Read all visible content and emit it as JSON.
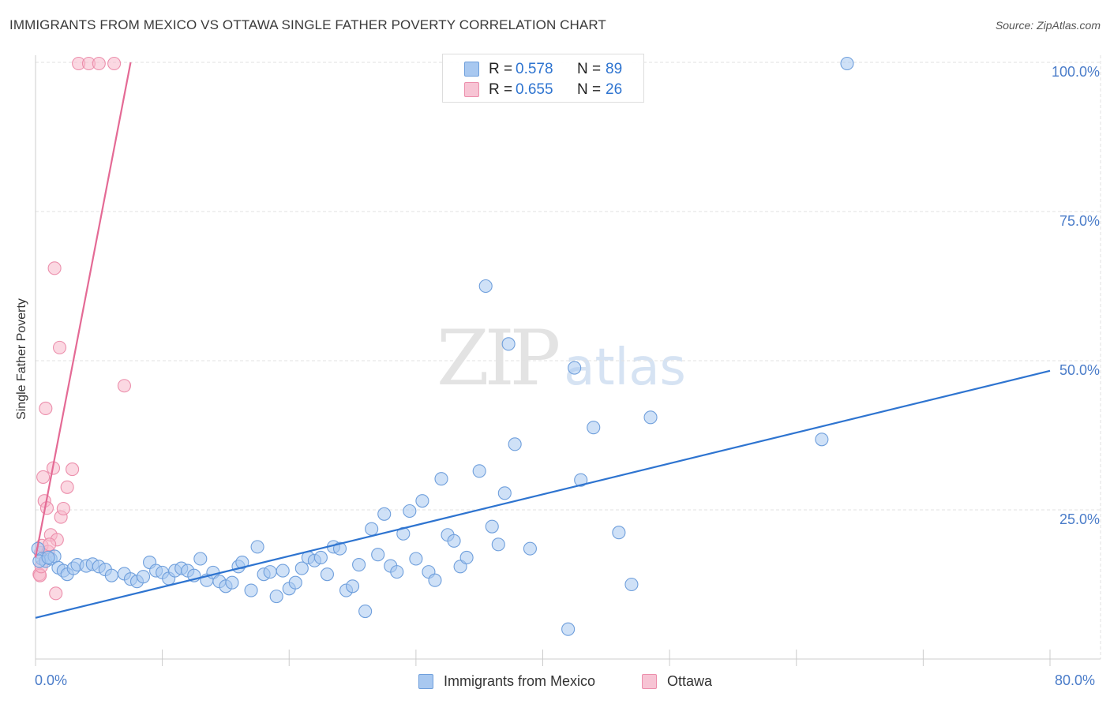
{
  "title": "IMMIGRANTS FROM MEXICO VS OTTAWA SINGLE FATHER POVERTY CORRELATION CHART",
  "source": "Source: ZipAtlas.com",
  "watermark": {
    "zip": "ZIP",
    "atlas": "atlas"
  },
  "colors": {
    "blue_fill": "#a8c8f0",
    "blue_stroke": "#6f9fdc",
    "blue_line": "#2e74d0",
    "pink_fill": "#f7b8cb",
    "pink_stroke": "#ec8fac",
    "pink_line": "#e46a95",
    "tick_label": "#4a7cc9",
    "grid": "#e2e2e2"
  },
  "legend": {
    "rows": [
      {
        "r_label": "R =",
        "r_value": "0.578",
        "n_label": "N =",
        "n_value": "89"
      },
      {
        "r_label": "R =",
        "r_value": "0.655",
        "n_label": "N =",
        "n_value": "26"
      }
    ]
  },
  "bottom_legend": {
    "items": [
      {
        "label": "Immigrants from Mexico"
      },
      {
        "label": "Ottawa"
      }
    ]
  },
  "chart_data": {
    "type": "scatter",
    "title": "IMMIGRANTS FROM MEXICO VS OTTAWA SINGLE FATHER POVERTY CORRELATION CHART",
    "xlabel": "",
    "ylabel": "Single Father Poverty",
    "xlim": [
      0,
      80
    ],
    "ylim": [
      0,
      100
    ],
    "x_tick_labels": [
      "0.0%",
      "80.0%"
    ],
    "y_ticks": [
      25,
      50,
      75,
      100
    ],
    "y_tick_labels": [
      "25.0%",
      "50.0%",
      "75.0%",
      "100.0%"
    ],
    "grid": true,
    "series": [
      {
        "name": "Immigrants from Mexico",
        "r": 0.578,
        "n": 89,
        "trend": {
          "x": [
            0,
            80
          ],
          "y": [
            6.9,
            48.3
          ]
        },
        "points": [
          [
            0.2,
            18.5
          ],
          [
            0.5,
            16.8
          ],
          [
            0.8,
            16.4
          ],
          [
            1.2,
            16.8
          ],
          [
            1.5,
            17.2
          ],
          [
            1.8,
            15.3
          ],
          [
            2.2,
            14.8
          ],
          [
            2.5,
            14.2
          ],
          [
            3.0,
            15.2
          ],
          [
            3.3,
            15.8
          ],
          [
            4.0,
            15.6
          ],
          [
            4.5,
            15.9
          ],
          [
            5.0,
            15.5
          ],
          [
            5.5,
            15.0
          ],
          [
            6.0,
            14.0
          ],
          [
            7.0,
            14.3
          ],
          [
            7.5,
            13.4
          ],
          [
            8.0,
            13.0
          ],
          [
            8.5,
            13.8
          ],
          [
            9.0,
            16.2
          ],
          [
            9.5,
            14.8
          ],
          [
            10.0,
            14.5
          ],
          [
            10.5,
            13.5
          ],
          [
            11.0,
            14.8
          ],
          [
            11.5,
            15.2
          ],
          [
            12.0,
            14.8
          ],
          [
            12.5,
            14.0
          ],
          [
            13.0,
            16.8
          ],
          [
            13.5,
            13.2
          ],
          [
            14.0,
            14.5
          ],
          [
            14.5,
            13.0
          ],
          [
            15.0,
            12.2
          ],
          [
            15.5,
            12.8
          ],
          [
            16.0,
            15.5
          ],
          [
            16.3,
            16.2
          ],
          [
            17.0,
            11.5
          ],
          [
            17.5,
            18.8
          ],
          [
            18.0,
            14.2
          ],
          [
            18.5,
            14.6
          ],
          [
            19.0,
            10.5
          ],
          [
            19.5,
            14.8
          ],
          [
            20.0,
            11.8
          ],
          [
            20.5,
            12.8
          ],
          [
            21.0,
            15.2
          ],
          [
            21.5,
            17.0
          ],
          [
            22.0,
            16.5
          ],
          [
            22.5,
            17.0
          ],
          [
            23.0,
            14.2
          ],
          [
            23.5,
            18.8
          ],
          [
            24.0,
            18.5
          ],
          [
            24.5,
            11.5
          ],
          [
            25.0,
            12.2
          ],
          [
            25.5,
            15.8
          ],
          [
            26.0,
            8.0
          ],
          [
            26.5,
            21.8
          ],
          [
            27.0,
            17.5
          ],
          [
            27.5,
            24.3
          ],
          [
            28.0,
            15.6
          ],
          [
            28.5,
            14.6
          ],
          [
            29.0,
            21.0
          ],
          [
            29.5,
            24.8
          ],
          [
            30.0,
            16.8
          ],
          [
            30.5,
            26.5
          ],
          [
            31.0,
            14.6
          ],
          [
            31.5,
            13.2
          ],
          [
            32.0,
            30.2
          ],
          [
            32.5,
            20.8
          ],
          [
            33.0,
            19.8
          ],
          [
            33.5,
            15.5
          ],
          [
            34.0,
            17.0
          ],
          [
            35.0,
            31.5
          ],
          [
            35.5,
            62.5
          ],
          [
            36.0,
            22.2
          ],
          [
            36.5,
            19.2
          ],
          [
            37.0,
            27.8
          ],
          [
            37.3,
            52.8
          ],
          [
            37.8,
            36.0
          ],
          [
            39.0,
            18.5
          ],
          [
            42.0,
            5.0
          ],
          [
            42.5,
            48.8
          ],
          [
            43.0,
            30.0
          ],
          [
            44.0,
            38.8
          ],
          [
            46.0,
            21.2
          ],
          [
            47.0,
            12.5
          ],
          [
            48.5,
            40.5
          ],
          [
            62.0,
            36.8
          ],
          [
            64.0,
            99.8
          ],
          [
            0.3,
            16.4
          ],
          [
            1.0,
            17.0
          ]
        ]
      },
      {
        "name": "Ottawa",
        "r": 0.655,
        "n": 26,
        "trend": {
          "x": [
            0,
            7.5
          ],
          "y": [
            17.0,
            100.0
          ]
        },
        "points": [
          [
            0.3,
            14.2
          ],
          [
            0.4,
            17.8
          ],
          [
            0.5,
            19.0
          ],
          [
            0.6,
            30.5
          ],
          [
            0.7,
            26.5
          ],
          [
            0.8,
            42.0
          ],
          [
            0.9,
            25.3
          ],
          [
            1.0,
            18.0
          ],
          [
            1.2,
            20.8
          ],
          [
            1.4,
            32.0
          ],
          [
            1.5,
            65.5
          ],
          [
            1.6,
            11.0
          ],
          [
            1.7,
            20.0
          ],
          [
            1.9,
            52.2
          ],
          [
            2.0,
            23.8
          ],
          [
            2.2,
            25.2
          ],
          [
            2.5,
            28.8
          ],
          [
            2.9,
            31.8
          ],
          [
            3.4,
            99.8
          ],
          [
            4.2,
            99.8
          ],
          [
            5.0,
            99.8
          ],
          [
            6.2,
            99.8
          ],
          [
            7.0,
            45.8
          ],
          [
            0.35,
            14.0
          ],
          [
            0.45,
            15.5
          ],
          [
            1.1,
            19.2
          ]
        ]
      }
    ]
  }
}
